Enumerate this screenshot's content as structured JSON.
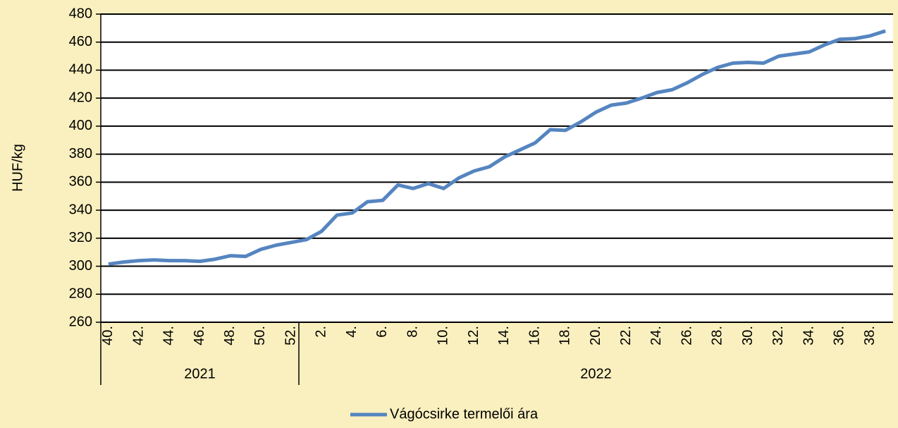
{
  "chart_data": {
    "type": "line",
    "y_label": "HUF/kg",
    "groups": [
      {
        "label": "2021",
        "categories": [
          "40.",
          null,
          "42.",
          null,
          "44.",
          null,
          "46.",
          null,
          "48.",
          null,
          "50.",
          null,
          "52."
        ]
      },
      {
        "label": "2022",
        "categories": [
          null,
          "2.",
          null,
          "4.",
          null,
          "6.",
          null,
          "8.",
          null,
          "10.",
          null,
          "12.",
          null,
          "14.",
          null,
          "16.",
          null,
          "18.",
          null,
          "20.",
          null,
          "22.",
          null,
          "24.",
          null,
          "26.",
          null,
          "28.",
          null,
          "30.",
          null,
          "32.",
          null,
          "34.",
          null,
          "36.",
          null,
          "38.",
          null
        ]
      }
    ],
    "series": [
      {
        "name": "Vágócsirke termelői ára",
        "color": "#5585c0",
        "values": [
          301.5,
          303,
          304,
          304.5,
          304,
          304,
          303.5,
          305,
          307.5,
          307,
          312,
          315,
          317,
          319,
          325,
          336.5,
          338,
          346,
          347,
          358,
          355.5,
          359,
          355.5,
          363,
          368,
          371,
          378,
          383,
          388,
          397.5,
          397,
          403,
          410,
          415,
          416.5,
          420,
          424,
          426,
          431,
          437,
          442,
          445,
          445.5,
          445,
          450,
          451.5,
          453,
          458,
          462,
          462.5,
          464.5,
          468
        ]
      }
    ],
    "ylim": [
      260,
      480
    ],
    "yticks": [
      260,
      280,
      300,
      320,
      340,
      360,
      380,
      400,
      420,
      440,
      460,
      480
    ],
    "grid": true,
    "legend": "bottom"
  }
}
